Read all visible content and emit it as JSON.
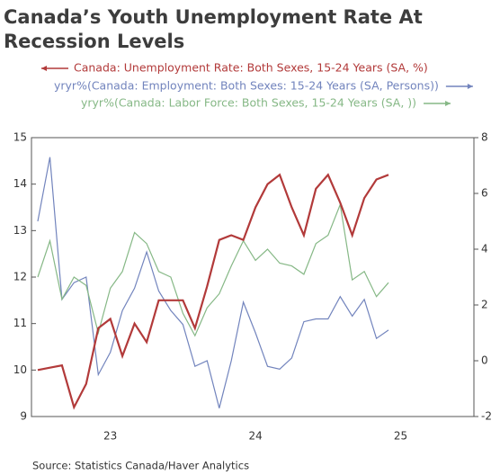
{
  "chart_data": {
    "type": "line",
    "title": "Canada’s Youth Unemployment Rate At Recession Levels",
    "source": "Source:  Statistics Canada/Haver Analytics",
    "categories": [
      null,
      null,
      null,
      null,
      null,
      null,
      "23",
      null,
      null,
      null,
      null,
      null,
      null,
      null,
      null,
      null,
      null,
      null,
      "24",
      null,
      null,
      null,
      null,
      null,
      null,
      null,
      null,
      null,
      null,
      null,
      "25",
      null,
      null,
      null,
      null,
      null,
      null
    ],
    "series": [
      {
        "name": "Canada: Unemployment Rate: Both Sexes, 15-24 Years (SA, %)",
        "color": "#b23a3a",
        "axis": "y",
        "values": [
          10.0,
          10.05,
          10.1,
          9.2,
          9.7,
          10.9,
          11.1,
          10.3,
          11.0,
          10.6,
          11.5,
          11.5,
          11.5,
          10.9,
          11.8,
          12.8,
          12.9,
          12.8,
          13.5,
          14.0,
          14.2,
          13.5,
          12.9,
          13.9,
          14.2,
          13.6,
          12.9,
          13.7,
          14.1,
          14.2,
          null,
          null,
          null,
          null,
          null,
          null,
          null
        ]
      },
      {
        "name": "yryr%(Canada: Employment: Both Sexes: 15-24 Years (SA,  Persons))",
        "color": "#7284bd",
        "axis": "y2",
        "values": [
          5.0,
          7.3,
          2.2,
          2.8,
          3.0,
          -0.5,
          0.3,
          1.8,
          2.6,
          3.9,
          2.5,
          1.8,
          1.3,
          -0.2,
          0.0,
          -1.7,
          0.0,
          2.1,
          1.0,
          -0.2,
          -0.3,
          0.1,
          1.4,
          1.5,
          1.5,
          2.3,
          1.6,
          2.2,
          0.8,
          1.1,
          null,
          null,
          null,
          null,
          null,
          null,
          null
        ]
      },
      {
        "name": "yryr%(Canada: Labor Force: Both Sexes, 15-24 Years (SA, ))",
        "color": "#86b886",
        "axis": "y2",
        "values": [
          3.0,
          4.3,
          2.2,
          3.0,
          2.7,
          1.0,
          2.6,
          3.2,
          4.6,
          4.2,
          3.2,
          3.0,
          1.7,
          0.9,
          1.9,
          2.4,
          3.4,
          4.3,
          3.6,
          4.0,
          3.5,
          3.4,
          3.1,
          4.2,
          4.5,
          5.6,
          2.9,
          3.2,
          2.3,
          2.8,
          null,
          null,
          null,
          null,
          null,
          null,
          null
        ]
      }
    ],
    "ylim": [
      9,
      15
    ],
    "yticks": [
      9,
      10,
      11,
      12,
      13,
      14,
      15
    ],
    "y2lim": [
      -2,
      8
    ],
    "y2ticks": [
      -2,
      0,
      2,
      4,
      6,
      8
    ],
    "grid": false
  }
}
